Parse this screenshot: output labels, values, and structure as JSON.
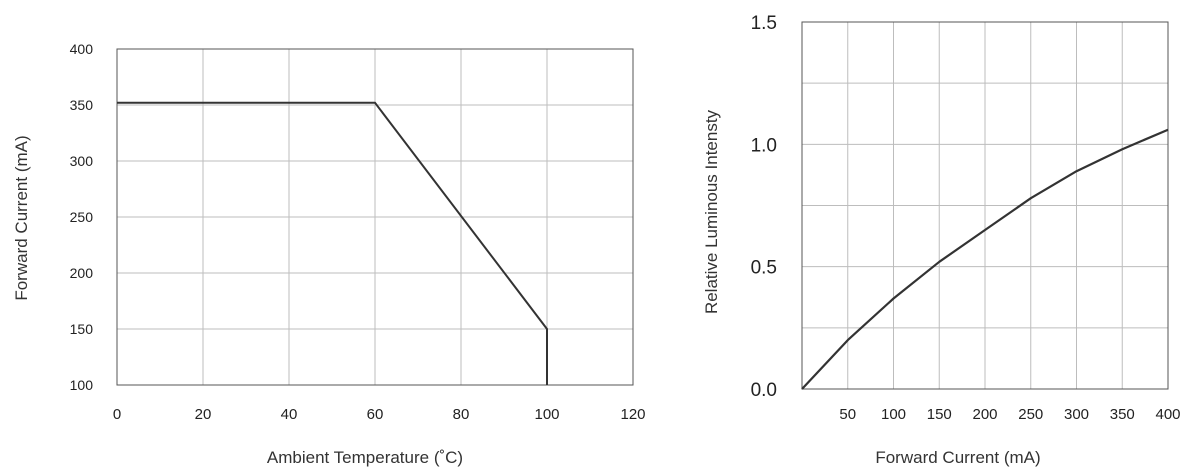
{
  "chart_data": [
    {
      "type": "line",
      "xlabel": "Ambient Temperature (˚C)",
      "ylabel": "Forward Current (mA)",
      "xlim": [
        0,
        120
      ],
      "ylim": [
        100,
        400
      ],
      "xticks": [
        "0",
        "20",
        "40",
        "60",
        "80",
        "100",
        "120"
      ],
      "yticks": [
        "100",
        "150",
        "200",
        "250",
        "300",
        "350",
        "400"
      ],
      "grid": true,
      "series": [
        {
          "x": [
            0,
            60,
            100,
            100
          ],
          "y": [
            352,
            352,
            150,
            100
          ]
        }
      ]
    },
    {
      "type": "line",
      "xlabel": "Forward Current (mA)",
      "ylabel": "Relative Luminous Intensty",
      "xlim": [
        0,
        400
      ],
      "ylim": [
        0,
        1.5
      ],
      "xticks": [
        "50",
        "100",
        "150",
        "200",
        "250",
        "300",
        "350",
        "400"
      ],
      "yticks": [
        "0.0",
        "0.5",
        "1.0",
        "1.5"
      ],
      "grid": true,
      "series": [
        {
          "x": [
            0,
            50,
            100,
            150,
            200,
            250,
            300,
            350,
            400
          ],
          "y": [
            0,
            0.2,
            0.37,
            0.52,
            0.65,
            0.78,
            0.89,
            0.98,
            1.06
          ]
        }
      ]
    }
  ]
}
